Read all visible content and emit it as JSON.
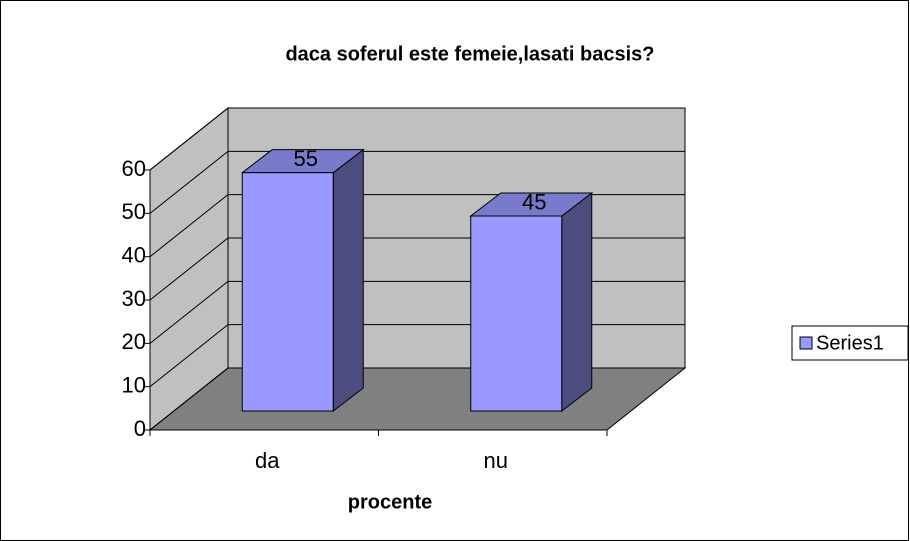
{
  "chart_data": {
    "type": "bar3d",
    "title": "daca soferul este femeie,lasati bacsis?",
    "categories": [
      "da",
      "nu"
    ],
    "values": [
      55,
      45
    ],
    "color": "#9999ff",
    "x_label": "procente",
    "legend": "right",
    "series_name": "Series1",
    "ylim": [
      0,
      60
    ],
    "yticks": [
      0,
      10,
      20,
      30,
      40,
      50,
      60
    ],
    "grid": true
  }
}
